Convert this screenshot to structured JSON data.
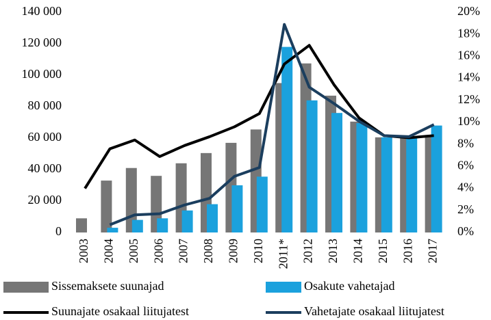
{
  "chart_data": {
    "type": "bar_line",
    "categories": [
      "2003",
      "2004",
      "2005",
      "2006",
      "2007",
      "2008",
      "2009",
      "2010",
      "2011*",
      "2012",
      "2013",
      "2014",
      "2015",
      "2016",
      "2017"
    ],
    "series": [
      {
        "name": "Sissemaksete suunajad",
        "color": "#767676",
        "kind": "bar",
        "values": [
          9000,
          33000,
          41000,
          36000,
          44000,
          50500,
          57000,
          65500,
          95000,
          107500,
          87000,
          70500,
          60500,
          60500,
          62000
        ]
      },
      {
        "name": "Osakute vahetajad",
        "color": "#1ba1dd",
        "kind": "bar",
        "values": [
          null,
          3000,
          8000,
          9000,
          14000,
          18000,
          30000,
          35500,
          118000,
          84000,
          76000,
          69500,
          60500,
          60500,
          68000
        ]
      },
      {
        "name": "Suunajate osakaal liitujatest",
        "color": "#000000",
        "kind": "line",
        "axis": "y2",
        "values": [
          4.0,
          7.6,
          8.4,
          6.9,
          7.9,
          8.7,
          9.6,
          10.8,
          15.3,
          17.0,
          13.4,
          10.4,
          8.8,
          8.6,
          8.8
        ]
      },
      {
        "name": "Vahetajate osakaal liitujatest",
        "color": "#1b3e5e",
        "kind": "line",
        "axis": "y2",
        "values": [
          null,
          0.7,
          1.6,
          1.7,
          2.5,
          3.1,
          5.1,
          5.9,
          18.9,
          13.2,
          11.7,
          10.1,
          8.8,
          8.7,
          9.8
        ]
      }
    ],
    "ylim": [
      0,
      140000
    ],
    "yticks": [
      0,
      {
        "value": 20000,
        "label": "20 000"
      },
      {
        "value": 40000,
        "label": "40 000"
      },
      {
        "value": 60000,
        "label": "60 000"
      },
      {
        "value": 80000,
        "label": "80 000"
      },
      {
        "value": 100000,
        "label": "100 000"
      },
      {
        "value": 120000,
        "label": "120 000"
      },
      {
        "value": 140000,
        "label": "140 000"
      }
    ],
    "y2lim": [
      0,
      20
    ],
    "y2ticks": [
      {
        "value": 0,
        "label": "0%"
      },
      {
        "value": 2,
        "label": "2%"
      },
      {
        "value": 4,
        "label": "4%"
      },
      {
        "value": 6,
        "label": "6%"
      },
      {
        "value": 8,
        "label": "8%"
      },
      {
        "value": 10,
        "label": "10%"
      },
      {
        "value": 12,
        "label": "12%"
      },
      {
        "value": 14,
        "label": "14%"
      },
      {
        "value": 16,
        "label": "16%"
      },
      {
        "value": 18,
        "label": "18%"
      },
      {
        "value": 20,
        "label": "20%"
      }
    ],
    "grid": false
  }
}
